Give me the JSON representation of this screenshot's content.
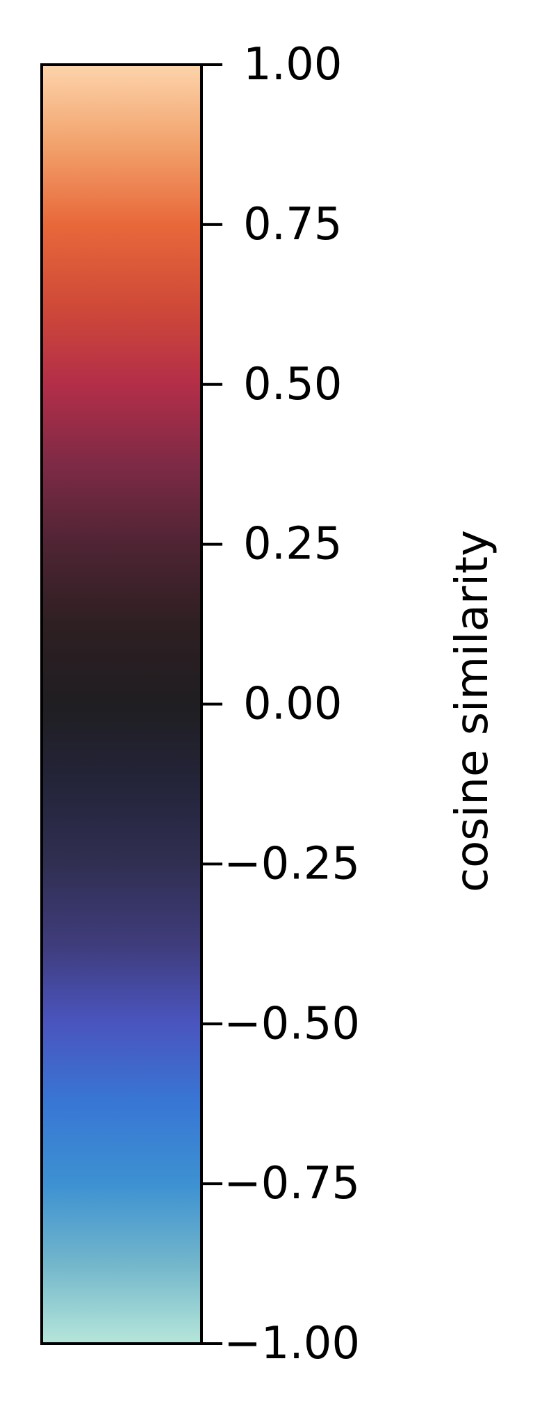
{
  "chart_data": {
    "type": "colorbar",
    "orientation": "vertical",
    "ylabel": "cosine similarity",
    "ylim": [
      -1.0,
      1.0
    ],
    "ticks": [
      {
        "value": 1.0,
        "label": "1.00"
      },
      {
        "value": 0.75,
        "label": "0.75"
      },
      {
        "value": 0.5,
        "label": "0.50"
      },
      {
        "value": 0.25,
        "label": "0.25"
      },
      {
        "value": 0.0,
        "label": "0.00"
      },
      {
        "value": -0.25,
        "label": "−0.25"
      },
      {
        "value": -0.5,
        "label": "−0.50"
      },
      {
        "value": -0.75,
        "label": "−0.75"
      },
      {
        "value": -1.0,
        "label": "−1.00"
      }
    ],
    "colormap": "icefire",
    "color_stops": [
      {
        "value": 1.0,
        "color": "#fdd4ab"
      },
      {
        "value": 0.875,
        "color": "#f2a26c"
      },
      {
        "value": 0.75,
        "color": "#e8683a"
      },
      {
        "value": 0.625,
        "color": "#d04a38"
      },
      {
        "value": 0.5,
        "color": "#b32e48"
      },
      {
        "value": 0.375,
        "color": "#7e2a46"
      },
      {
        "value": 0.25,
        "color": "#4f2434"
      },
      {
        "value": 0.125,
        "color": "#2e1f22"
      },
      {
        "value": 0.0,
        "color": "#1f1e21"
      },
      {
        "value": -0.125,
        "color": "#24243a"
      },
      {
        "value": -0.25,
        "color": "#302f52"
      },
      {
        "value": -0.375,
        "color": "#3f3c7b"
      },
      {
        "value": -0.5,
        "color": "#4a55bf"
      },
      {
        "value": -0.625,
        "color": "#3877d4"
      },
      {
        "value": -0.75,
        "color": "#3d91d2"
      },
      {
        "value": -0.875,
        "color": "#72b6cb"
      },
      {
        "value": -1.0,
        "color": "#b6e6da"
      }
    ]
  }
}
